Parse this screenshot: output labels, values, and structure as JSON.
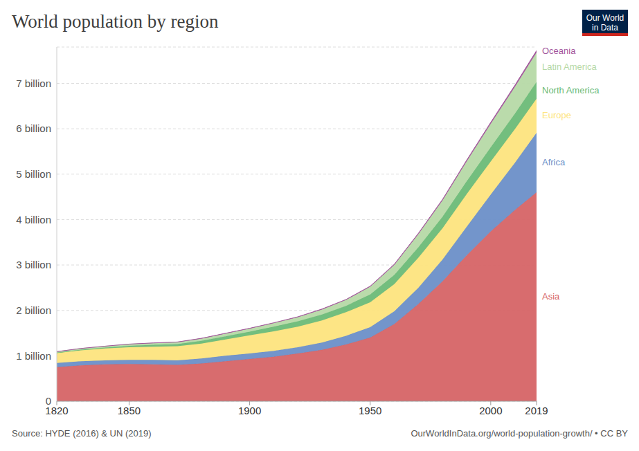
{
  "chart_data": {
    "type": "area",
    "title": "World population by region",
    "logo": "Our World in Data",
    "source": "Source: HYDE (2016) & UN (2019)",
    "credit": "OurWorldInData.org/world-population-growth/ • CC BY",
    "stacked": true,
    "grid": true,
    "x": [
      1820,
      1830,
      1840,
      1850,
      1860,
      1870,
      1880,
      1890,
      1900,
      1910,
      1920,
      1930,
      1940,
      1950,
      1960,
      1970,
      1980,
      1990,
      2000,
      2010,
      2019
    ],
    "xlim": [
      1820,
      2019
    ],
    "xticks": [
      1820,
      1850,
      1900,
      1950,
      2000,
      2019
    ],
    "ylim": [
      0,
      7.8
    ],
    "yticks": [
      0,
      {
        "value": 1,
        "label": "1 billion"
      },
      {
        "value": 2,
        "label": "2 billion"
      },
      {
        "value": 3,
        "label": "3 billion"
      },
      {
        "value": 4,
        "label": "4 billion"
      },
      {
        "value": 5,
        "label": "5 billion"
      },
      {
        "value": 6,
        "label": "6 billion"
      },
      {
        "value": 7,
        "label": "7 billion"
      }
    ],
    "series": [
      {
        "name": "Asia",
        "color": "#d66466",
        "values": [
          0.75,
          0.79,
          0.81,
          0.82,
          0.81,
          0.8,
          0.83,
          0.88,
          0.93,
          0.98,
          1.05,
          1.13,
          1.25,
          1.4,
          1.7,
          2.14,
          2.64,
          3.21,
          3.74,
          4.21,
          4.6
        ]
      },
      {
        "name": "Africa",
        "color": "#6c8fc8",
        "values": [
          0.09,
          0.09,
          0.09,
          0.09,
          0.1,
          0.1,
          0.11,
          0.12,
          0.12,
          0.13,
          0.14,
          0.16,
          0.19,
          0.23,
          0.28,
          0.36,
          0.48,
          0.63,
          0.81,
          1.04,
          1.31
        ]
      },
      {
        "name": "Europe",
        "color": "#fde47e",
        "values": [
          0.22,
          0.24,
          0.26,
          0.28,
          0.29,
          0.31,
          0.33,
          0.36,
          0.4,
          0.43,
          0.45,
          0.49,
          0.52,
          0.55,
          0.6,
          0.66,
          0.69,
          0.72,
          0.73,
          0.74,
          0.75
        ]
      },
      {
        "name": "North America",
        "color": "#6bba77",
        "values": [
          0.01,
          0.015,
          0.02,
          0.03,
          0.04,
          0.045,
          0.06,
          0.07,
          0.08,
          0.1,
          0.12,
          0.13,
          0.14,
          0.17,
          0.2,
          0.23,
          0.25,
          0.28,
          0.31,
          0.34,
          0.37
        ]
      },
      {
        "name": "Latin America",
        "color": "#b6d9a6",
        "values": [
          0.02,
          0.025,
          0.03,
          0.035,
          0.04,
          0.045,
          0.05,
          0.06,
          0.07,
          0.08,
          0.09,
          0.11,
          0.13,
          0.17,
          0.22,
          0.29,
          0.36,
          0.44,
          0.52,
          0.59,
          0.65
        ]
      },
      {
        "name": "Oceania",
        "color": "#a2559c",
        "values": [
          0.002,
          0.002,
          0.002,
          0.003,
          0.003,
          0.004,
          0.005,
          0.006,
          0.006,
          0.007,
          0.009,
          0.01,
          0.011,
          0.013,
          0.016,
          0.019,
          0.023,
          0.027,
          0.031,
          0.037,
          0.042
        ]
      }
    ]
  }
}
